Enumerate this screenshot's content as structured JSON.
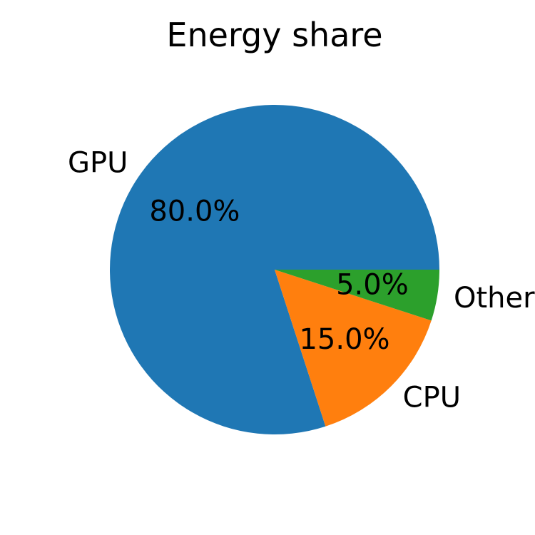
{
  "chart_data": {
    "type": "pie",
    "title": "Energy share",
    "slices": [
      {
        "label": "GPU",
        "value": 80.0,
        "pct_label": "80.0%",
        "color": "#1f77b4"
      },
      {
        "label": "CPU",
        "value": 15.0,
        "pct_label": "15.0%",
        "color": "#ff7f0e"
      },
      {
        "label": "Other",
        "value": 5.0,
        "pct_label": "5.0%",
        "color": "#2ca02c"
      }
    ],
    "start_angle": 0,
    "direction": "counterclockwise"
  }
}
